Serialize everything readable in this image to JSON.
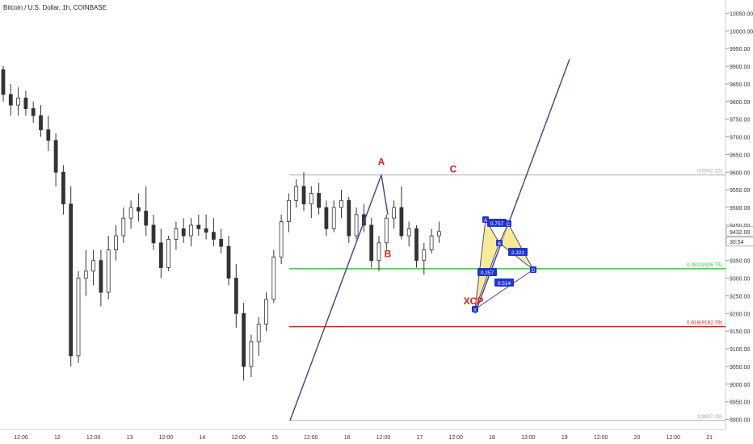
{
  "header": {
    "title": "Bitcoin / U.S. Dollar, 1h, COINBASE"
  },
  "colors": {
    "up": "#333333",
    "down": "#333333",
    "trendline": "#4f4a8a",
    "green_line": "#2ecc40",
    "red_line": "#e01e1e",
    "gray_line": "#b0b0b0",
    "xabcd_fill": "#f5e26b",
    "xabcd_label_bg": "#1f35d0",
    "abc_text": "#e01e1e"
  },
  "chart_data": {
    "type": "candlestick",
    "symbol": "Bitcoin / U.S. Dollar",
    "interval": "1h",
    "exchange": "COINBASE",
    "y_axis_ticks": [
      "10050.00",
      "10000.00",
      "9950.00",
      "9900.00",
      "9850.00",
      "9800.00",
      "9750.00",
      "9700.00",
      "9650.00",
      "9600.00",
      "9550.00",
      "9500.00",
      "9450.00",
      "9400.00",
      "9350.00",
      "9300.00",
      "9250.00",
      "9200.00",
      "9150.00",
      "9100.00",
      "9050.00",
      "9000.00",
      "8950.00",
      "8900.00"
    ],
    "ylim": [
      8890,
      10060
    ],
    "x_axis_ticks": [
      "12:00",
      "12",
      "12:00",
      "13",
      "12:00",
      "14",
      "12:00",
      "15",
      "12:00",
      "16",
      "12:00",
      "17",
      "12:00",
      "18",
      "12:00",
      "19",
      "12:00",
      "20",
      "12:00",
      "21"
    ],
    "price_readouts": [
      "9432.00",
      "30:54"
    ],
    "horizontal_levels": [
      {
        "label": "0(9592.15)",
        "price": 9592.15,
        "color": "gray"
      },
      {
        "label": "0.382(9326.75)",
        "price": 9326.75,
        "color": "green"
      },
      {
        "label": "0.618(9162.79)",
        "price": 9162.79,
        "color": "red"
      },
      {
        "label": "1(8897.39)",
        "price": 8897.39,
        "color": "gray"
      }
    ],
    "abc_labels": [
      "A",
      "B",
      "C"
    ],
    "xabcd_pattern_labels": [
      "X",
      "A",
      "B",
      "C",
      "D"
    ],
    "xabcd_ratios": [
      "0.757",
      "2.321",
      "0.257",
      "0.514"
    ],
    "xcp_label": "XCP",
    "candles": [
      [
        9890,
        9900,
        9800,
        9820
      ],
      [
        9820,
        9850,
        9760,
        9790
      ],
      [
        9790,
        9840,
        9760,
        9810
      ],
      [
        9810,
        9830,
        9760,
        9780
      ],
      [
        9780,
        9800,
        9740,
        9760
      ],
      [
        9760,
        9790,
        9700,
        9720
      ],
      [
        9720,
        9760,
        9660,
        9690
      ],
      [
        9690,
        9710,
        9560,
        9600
      ],
      [
        9600,
        9620,
        9480,
        9510
      ],
      [
        9510,
        9560,
        9050,
        9080
      ],
      [
        9080,
        9320,
        9060,
        9300
      ],
      [
        9300,
        9380,
        9250,
        9320
      ],
      [
        9320,
        9380,
        9280,
        9350
      ],
      [
        9350,
        9380,
        9220,
        9260
      ],
      [
        9260,
        9420,
        9240,
        9380
      ],
      [
        9380,
        9450,
        9350,
        9420
      ],
      [
        9420,
        9500,
        9400,
        9470
      ],
      [
        9470,
        9520,
        9440,
        9500
      ],
      [
        9500,
        9540,
        9460,
        9490
      ],
      [
        9490,
        9560,
        9420,
        9450
      ],
      [
        9450,
        9480,
        9380,
        9400
      ],
      [
        9400,
        9440,
        9300,
        9330
      ],
      [
        9330,
        9420,
        9320,
        9410
      ],
      [
        9410,
        9460,
        9380,
        9440
      ],
      [
        9440,
        9470,
        9400,
        9420
      ],
      [
        9420,
        9470,
        9390,
        9450
      ],
      [
        9450,
        9480,
        9420,
        9440
      ],
      [
        9440,
        9480,
        9410,
        9430
      ],
      [
        9430,
        9470,
        9390,
        9410
      ],
      [
        9410,
        9440,
        9370,
        9390
      ],
      [
        9390,
        9420,
        9280,
        9300
      ],
      [
        9300,
        9340,
        9160,
        9200
      ],
      [
        9200,
        9230,
        9010,
        9050
      ],
      [
        9050,
        9140,
        9020,
        9120
      ],
      [
        9120,
        9190,
        9080,
        9170
      ],
      [
        9170,
        9260,
        9150,
        9240
      ],
      [
        9240,
        9380,
        9230,
        9360
      ],
      [
        9360,
        9480,
        9340,
        9460
      ],
      [
        9460,
        9540,
        9430,
        9520
      ],
      [
        9520,
        9580,
        9500,
        9560
      ],
      [
        9560,
        9600,
        9490,
        9510
      ],
      [
        9510,
        9560,
        9470,
        9540
      ],
      [
        9540,
        9570,
        9480,
        9500
      ],
      [
        9500,
        9520,
        9420,
        9440
      ],
      [
        9440,
        9520,
        9430,
        9500
      ],
      [
        9500,
        9550,
        9470,
        9520
      ],
      [
        9520,
        9530,
        9400,
        9420
      ],
      [
        9420,
        9500,
        9410,
        9480
      ],
      [
        9480,
        9510,
        9430,
        9450
      ],
      [
        9450,
        9470,
        9330,
        9350
      ],
      [
        9350,
        9420,
        9320,
        9400
      ],
      [
        9400,
        9480,
        9380,
        9470
      ],
      [
        9470,
        9520,
        9440,
        9500
      ],
      [
        9500,
        9560,
        9410,
        9420
      ],
      [
        9420,
        9460,
        9390,
        9440
      ],
      [
        9440,
        9450,
        9330,
        9350
      ],
      [
        9350,
        9400,
        9310,
        9380
      ],
      [
        9380,
        9440,
        9370,
        9420
      ],
      [
        9420,
        9460,
        9400,
        9432
      ]
    ]
  }
}
